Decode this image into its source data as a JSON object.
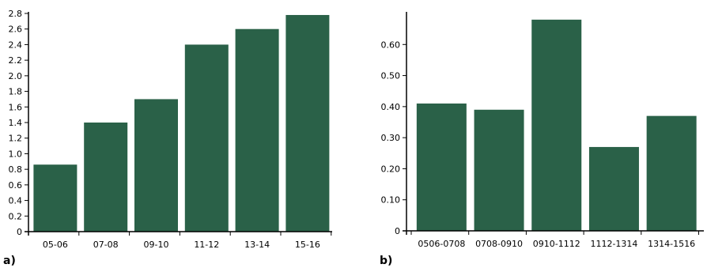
{
  "colors": {
    "bar": "#2a6148",
    "axis": "#000000"
  },
  "chart_data": [
    {
      "type": "bar",
      "panel_label": "a)",
      "categories": [
        "05-06",
        "07-08",
        "09-10",
        "11-12",
        "13-14",
        "15-16"
      ],
      "values": [
        0.86,
        1.4,
        1.7,
        2.4,
        2.6,
        2.78
      ],
      "ylim": [
        0,
        2.8
      ],
      "yticks": [
        "0",
        "0.2",
        "0.4",
        "0.6",
        "0.8",
        "1.0",
        "1.2",
        "1.4",
        "1.6",
        "1.8",
        "2.0",
        "2.2",
        "2.4",
        "2.6",
        "2.8"
      ],
      "grid": false
    },
    {
      "type": "bar",
      "panel_label": "b)",
      "categories": [
        "0506-0708",
        "0708-0910",
        "0910-1112",
        "1112-1314",
        "1314-1516"
      ],
      "values": [
        0.41,
        0.39,
        0.68,
        0.27,
        0.37
      ],
      "ylim": [
        0,
        0.7
      ],
      "yticks": [
        "0",
        "0.10",
        "0.20",
        "0.30",
        "0.40",
        "0.50",
        "0.60"
      ],
      "grid": false
    }
  ]
}
